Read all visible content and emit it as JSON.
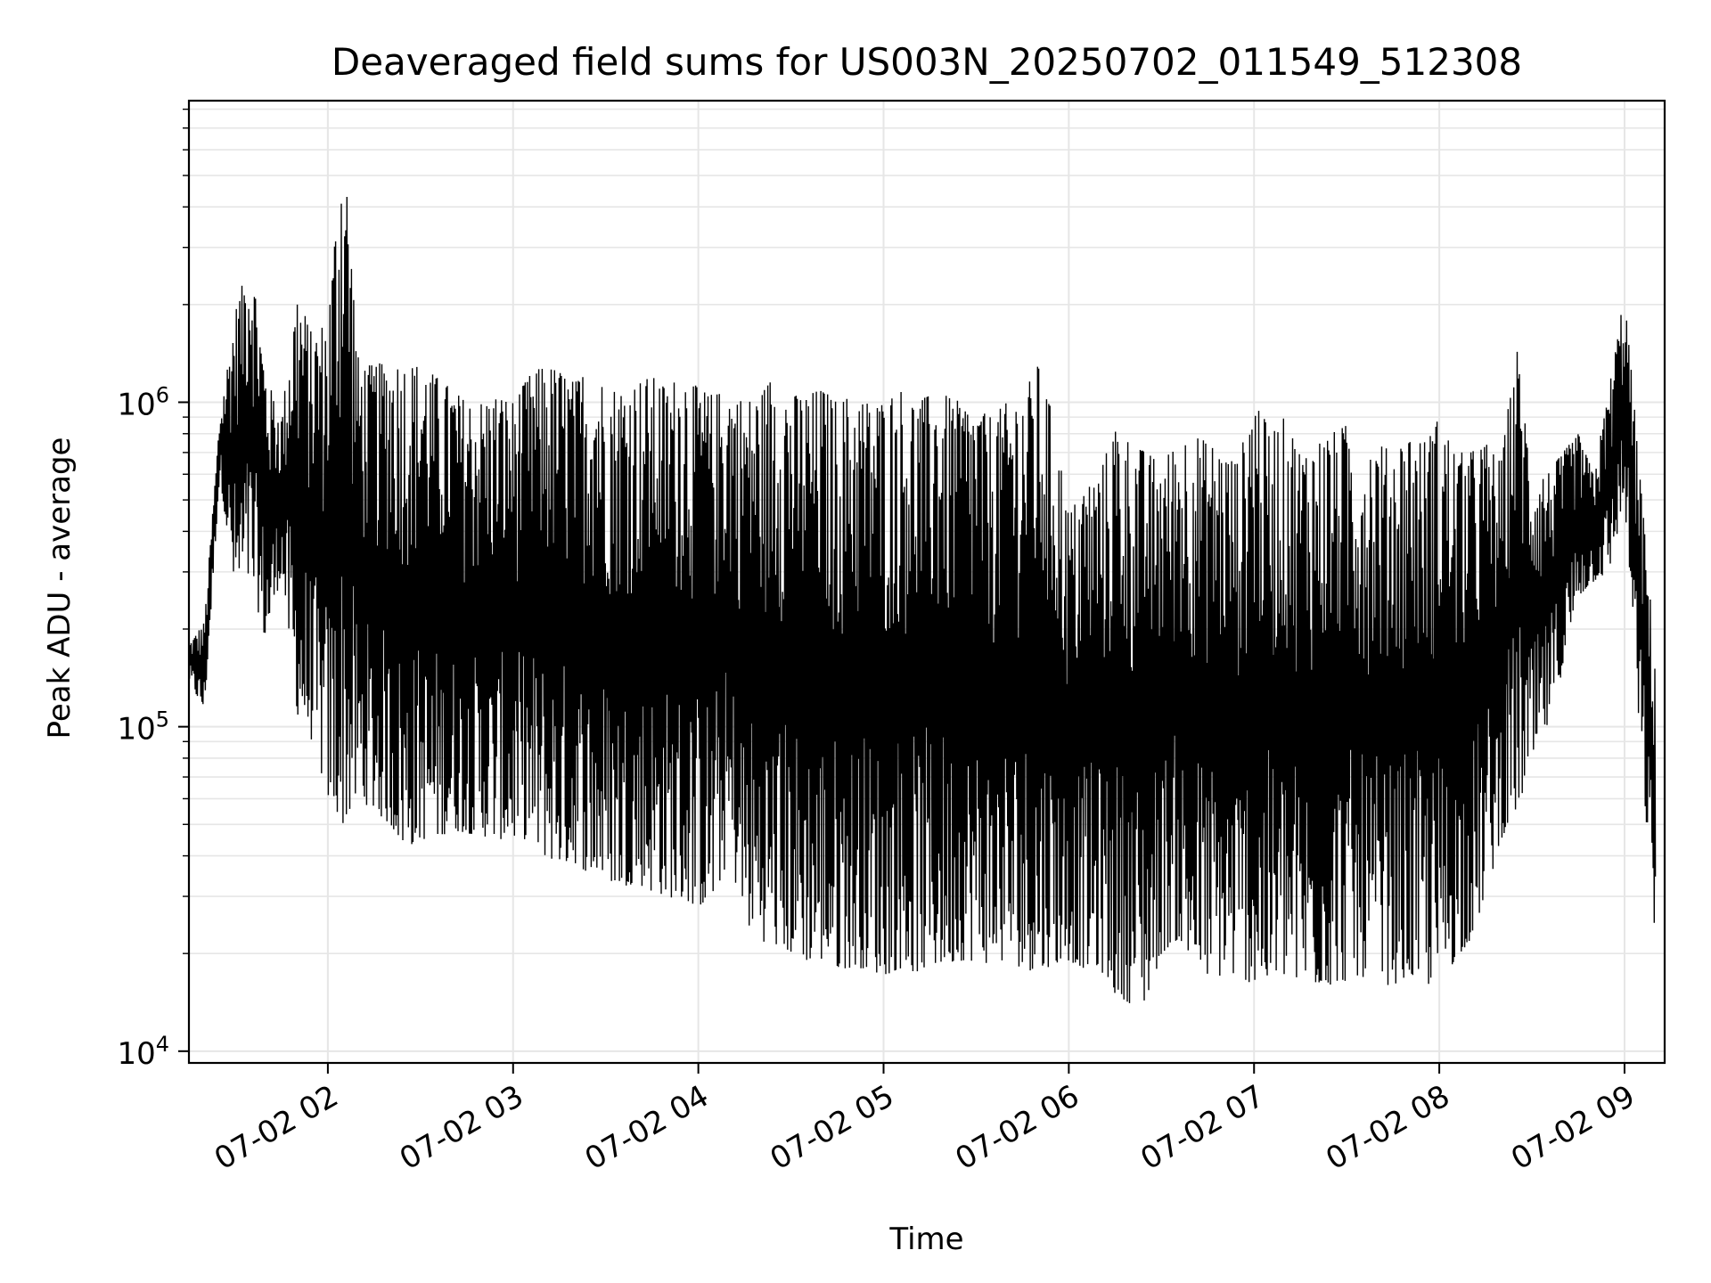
{
  "chart_data": {
    "type": "line",
    "title": "Deaveraged field sums for US003N_20250702_011549_512308",
    "xlabel": "Time",
    "ylabel": "Peak ADU - average",
    "yscale": "log",
    "grid": true,
    "line_color": "#000000",
    "grid_color": "#e6e6e6",
    "xlim": [
      "2025-07-02 01:15",
      "2025-07-02 09:13"
    ],
    "ylim": [
      9200,
      8500000
    ],
    "x_ticks": [
      {
        "value": "2025-07-02 02:00",
        "label": "07-02 02"
      },
      {
        "value": "2025-07-02 03:00",
        "label": "07-02 03"
      },
      {
        "value": "2025-07-02 04:00",
        "label": "07-02 04"
      },
      {
        "value": "2025-07-02 05:00",
        "label": "07-02 05"
      },
      {
        "value": "2025-07-02 06:00",
        "label": "07-02 06"
      },
      {
        "value": "2025-07-02 07:00",
        "label": "07-02 07"
      },
      {
        "value": "2025-07-02 08:00",
        "label": "07-02 08"
      },
      {
        "value": "2025-07-02 09:00",
        "label": "07-02 09"
      }
    ],
    "y_ticks": [
      {
        "value": 10000,
        "base": "10",
        "exp": "4"
      },
      {
        "value": 100000,
        "base": "10",
        "exp": "5"
      },
      {
        "value": 1000000,
        "base": "10",
        "exp": "6"
      }
    ],
    "series": [
      {
        "x": [
          "2025-07-02 01:15",
          "2025-07-02 01:20",
          "2025-07-02 01:25",
          "2025-07-02 01:30",
          "2025-07-02 01:35",
          "2025-07-02 01:40",
          "2025-07-02 01:45",
          "2025-07-02 01:50",
          "2025-07-02 01:55",
          "2025-07-02 02:00",
          "2025-07-02 02:05",
          "2025-07-02 02:10",
          "2025-07-02 02:15",
          "2025-07-02 02:20",
          "2025-07-02 02:25",
          "2025-07-02 02:30",
          "2025-07-02 02:35",
          "2025-07-02 02:40",
          "2025-07-02 02:45",
          "2025-07-02 02:50",
          "2025-07-02 02:55",
          "2025-07-02 03:00",
          "2025-07-02 03:05",
          "2025-07-02 03:10",
          "2025-07-02 03:15",
          "2025-07-02 03:20",
          "2025-07-02 03:25",
          "2025-07-02 03:30",
          "2025-07-02 03:35",
          "2025-07-02 03:40",
          "2025-07-02 03:45",
          "2025-07-02 03:50",
          "2025-07-02 03:55",
          "2025-07-02 04:00",
          "2025-07-02 04:05",
          "2025-07-02 04:10",
          "2025-07-02 04:15",
          "2025-07-02 04:20",
          "2025-07-02 04:25",
          "2025-07-02 04:30",
          "2025-07-02 04:35",
          "2025-07-02 04:40",
          "2025-07-02 04:45",
          "2025-07-02 04:50",
          "2025-07-02 04:55",
          "2025-07-02 05:00",
          "2025-07-02 05:05",
          "2025-07-02 05:10",
          "2025-07-02 05:15",
          "2025-07-02 05:20",
          "2025-07-02 05:25",
          "2025-07-02 05:30",
          "2025-07-02 05:35",
          "2025-07-02 05:40",
          "2025-07-02 05:45",
          "2025-07-02 05:50",
          "2025-07-02 05:55",
          "2025-07-02 06:00",
          "2025-07-02 06:05",
          "2025-07-02 06:10",
          "2025-07-02 06:15",
          "2025-07-02 06:20",
          "2025-07-02 06:25",
          "2025-07-02 06:30",
          "2025-07-02 06:35",
          "2025-07-02 06:40",
          "2025-07-02 06:45",
          "2025-07-02 06:50",
          "2025-07-02 06:55",
          "2025-07-02 07:00",
          "2025-07-02 07:05",
          "2025-07-02 07:10",
          "2025-07-02 07:15",
          "2025-07-02 07:20",
          "2025-07-02 07:25",
          "2025-07-02 07:30",
          "2025-07-02 07:35",
          "2025-07-02 07:40",
          "2025-07-02 07:45",
          "2025-07-02 07:50",
          "2025-07-02 07:55",
          "2025-07-02 08:00",
          "2025-07-02 08:05",
          "2025-07-02 08:10",
          "2025-07-02 08:15",
          "2025-07-02 08:20",
          "2025-07-02 08:25",
          "2025-07-02 08:30",
          "2025-07-02 08:35",
          "2025-07-02 08:40",
          "2025-07-02 08:45",
          "2025-07-02 08:50",
          "2025-07-02 08:55",
          "2025-07-02 09:00",
          "2025-07-02 09:05",
          "2025-07-02 09:10"
        ],
        "high": [
          180000,
          210000,
          900000,
          1900000,
          2900000,
          1200000,
          900000,
          2200000,
          1600000,
          1800000,
          7000000,
          1300000,
          1300000,
          1350000,
          1300000,
          1300000,
          1200000,
          1100000,
          1000000,
          1000000,
          1050000,
          1000000,
          1200000,
          1300000,
          1250000,
          1150000,
          1300000,
          1100000,
          1100000,
          1150000,
          1200000,
          1100000,
          1250000,
          1100000,
          1050000,
          1100000,
          1000000,
          1050000,
          1250000,
          1050000,
          1050000,
          1100000,
          1000000,
          1050000,
          1000000,
          1000000,
          1100000,
          1000000,
          1050000,
          1050000,
          1000000,
          950000,
          900000,
          1000000,
          1050000,
          1300000,
          900000,
          450000,
          550000,
          600000,
          850000,
          750000,
          700000,
          650000,
          750000,
          800000,
          750000,
          700000,
          650000,
          1100000,
          800000,
          900000,
          700000,
          750000,
          800000,
          850000,
          700000,
          750000,
          700000,
          800000,
          750000,
          900000,
          700000,
          700000,
          750000,
          650000,
          1500000,
          600000,
          600000,
          700000,
          800000,
          600000,
          1100000,
          2200000,
          600000,
          160000
        ],
        "low": [
          140000,
          110000,
          600000,
          250000,
          280000,
          180000,
          300000,
          110000,
          90000,
          60000,
          50000,
          60000,
          55000,
          50000,
          42000,
          45000,
          45000,
          48000,
          47000,
          46000,
          45000,
          45000,
          45000,
          40000,
          38000,
          38000,
          35000,
          34000,
          32000,
          33000,
          31000,
          30000,
          29000,
          28000,
          29000,
          40000,
          25000,
          22000,
          21000,
          20000,
          19000,
          19000,
          18000,
          18000,
          18000,
          17000,
          18000,
          17500,
          18000,
          18500,
          19000,
          19000,
          18500,
          19000,
          18000,
          17500,
          18500,
          19000,
          18000,
          18000,
          15000,
          14000,
          14000,
          20000,
          22000,
          18000,
          17000,
          17000,
          17000,
          16000,
          16000,
          17000,
          16000,
          16000,
          16000,
          16500,
          17000,
          16000,
          16000,
          17000,
          16000,
          16000,
          19000,
          22000,
          30000,
          45000,
          55000,
          75000,
          100000,
          150000,
          250000,
          280000,
          300000,
          500000,
          90000,
          22000
        ]
      }
    ]
  }
}
